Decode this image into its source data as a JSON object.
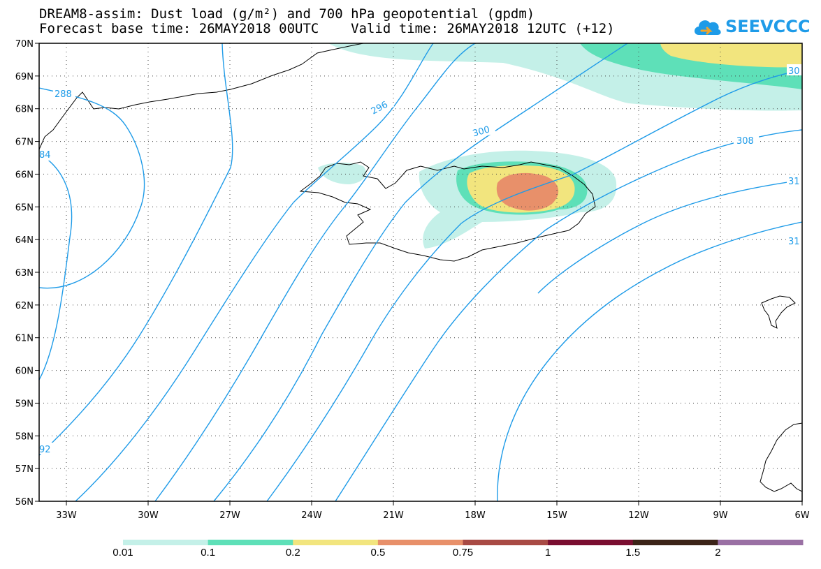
{
  "title_line1": "DREAM8-assim: Dust load (g/m²) and 700 hPa geopotential (gpdm)",
  "title_line2": "Forecast base time: 26MAY2018 00UTC    Valid time: 26MAY2018 12UTC (+12)",
  "logo_text": "SEEVCCC",
  "map": {
    "lat_labels": [
      "70N",
      "69N",
      "68N",
      "67N",
      "66N",
      "65N",
      "64N",
      "63N",
      "62N",
      "61N",
      "60N",
      "59N",
      "58N",
      "57N",
      "56N"
    ],
    "lon_labels": [
      "33W",
      "30W",
      "27W",
      "24W",
      "21W",
      "18W",
      "15W",
      "12W",
      "9W",
      "6W"
    ],
    "contour_labels": [
      "288",
      "84",
      "296",
      "300",
      "308",
      "30",
      "31",
      "31",
      "92"
    ]
  },
  "colorbar": {
    "labels": [
      "0.01",
      "0.1",
      "0.2",
      "0.5",
      "0.75",
      "1",
      "1.5",
      "2"
    ],
    "colors": [
      "#c4f0e8",
      "#5ee0b8",
      "#f2e57e",
      "#e8906a",
      "#a84a44",
      "#7a0e30",
      "#3c2418",
      "#9a70a4"
    ]
  },
  "colors": {
    "contour": "#1e9be8",
    "land_outline": "#000000"
  }
}
